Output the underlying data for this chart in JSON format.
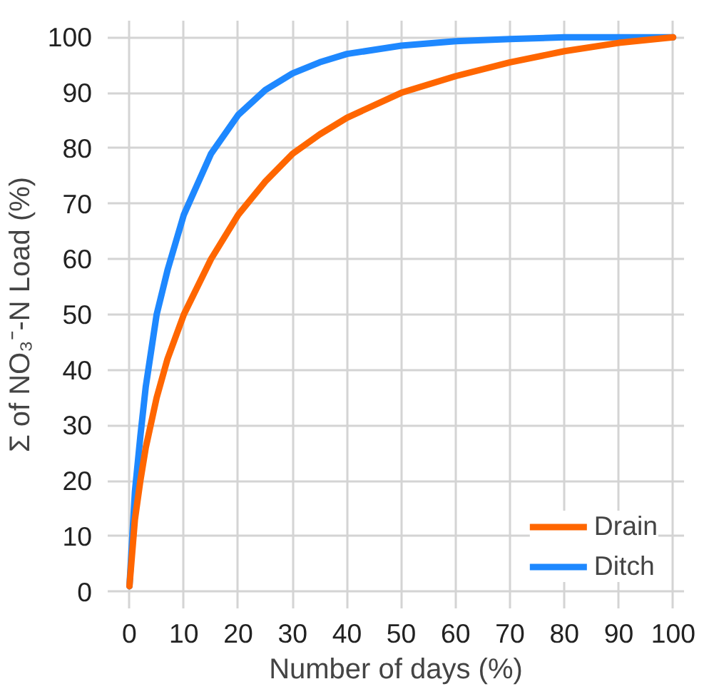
{
  "chart_data": {
    "type": "line",
    "xlabel": "Number of days (%)",
    "ylabel": "Σ of NO₃⁻-N Load (%)",
    "x": [
      0,
      1,
      2,
      3,
      5,
      7,
      10,
      15,
      20,
      25,
      30,
      35,
      40,
      50,
      60,
      70,
      80,
      90,
      100
    ],
    "series": [
      {
        "name": "Drain",
        "color": "#ff6600",
        "values": [
          1,
          13,
          20,
          26,
          35,
          42,
          50,
          60,
          68,
          74,
          79,
          82.5,
          85.5,
          90,
          93,
          95.5,
          97.5,
          99,
          100
        ]
      },
      {
        "name": "Ditch",
        "color": "#1e88ff",
        "values": [
          1,
          18,
          28,
          37,
          50,
          58,
          68,
          79,
          86,
          90.5,
          93.5,
          95.5,
          97,
          98.5,
          99.3,
          99.7,
          100,
          100,
          100
        ]
      }
    ],
    "xlim": [
      -4,
      102
    ],
    "ylim": [
      -3,
      103
    ],
    "xticks": [
      0,
      10,
      20,
      30,
      40,
      50,
      60,
      70,
      80,
      90,
      100
    ],
    "yticks": [
      0,
      10,
      20,
      30,
      40,
      50,
      60,
      70,
      80,
      90,
      100
    ],
    "grid": true,
    "legend": "bottom right",
    "line_style": "solid",
    "marker": "none"
  }
}
